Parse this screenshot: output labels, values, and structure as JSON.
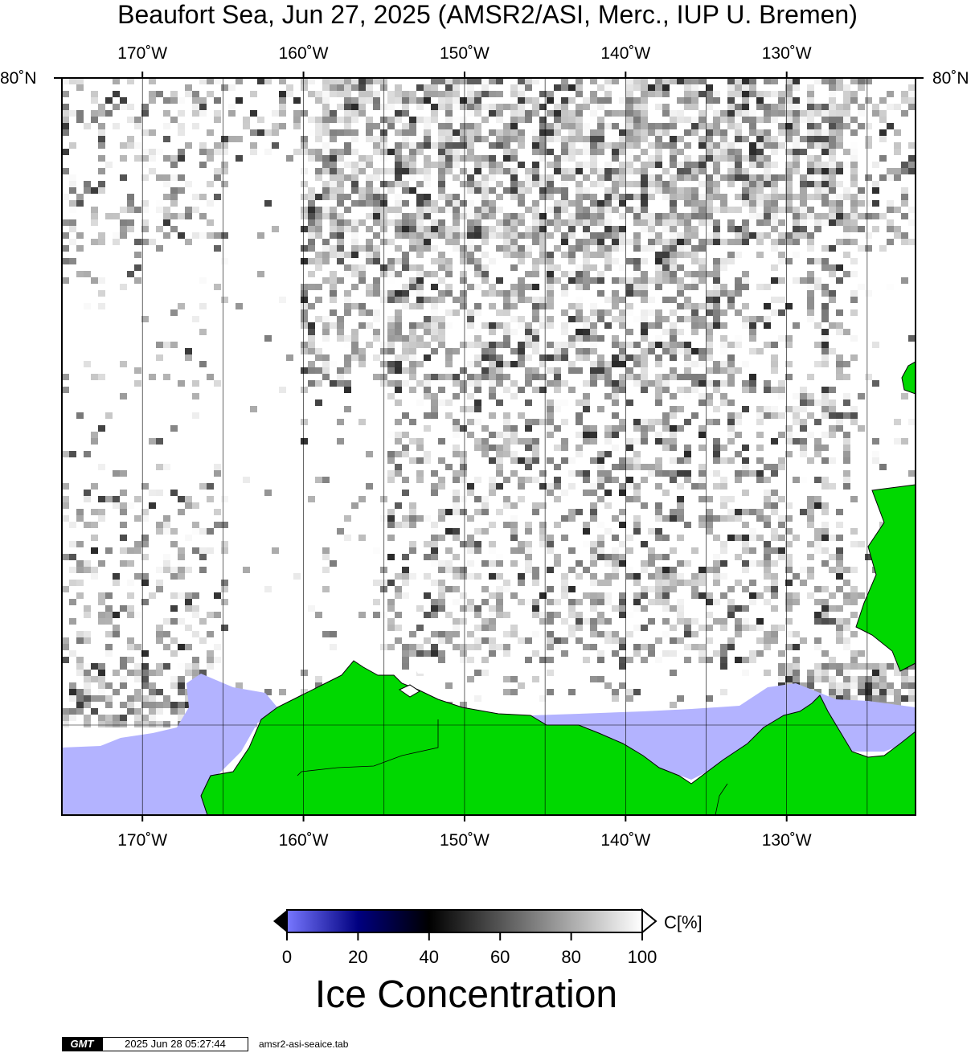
{
  "title": "Beaufort Sea, Jun 27, 2025 (AMSR2/ASI, Merc., IUP U. Bremen)",
  "map": {
    "projection": "Mercator",
    "lon_range": [
      -175,
      -122
    ],
    "lat_top_label": "80˚N",
    "lon_ticks_deg": [
      -170,
      -160,
      -150,
      -140,
      -130
    ],
    "lon_tick_labels": [
      "170˚W",
      "160˚W",
      "150˚W",
      "140˚W",
      "130˚W"
    ],
    "gridline_lons_deg": [
      -170,
      -165,
      -160,
      -155,
      -150,
      -145,
      -140,
      -135,
      -130,
      -125
    ],
    "colors": {
      "land": "#00d800",
      "open_water": "#b3b3ff",
      "frame": "#000000"
    }
  },
  "colorbar": {
    "ticks": [
      0,
      20,
      40,
      60,
      80,
      100
    ],
    "tick_labels": [
      "0",
      "20",
      "40",
      "60",
      "80",
      "100"
    ],
    "unit_label": "C[%]",
    "title": "Ice Concentration",
    "colors": {
      "low": "#7777ff",
      "mid_low": "#000080",
      "mid": "#000000",
      "high": "#ffffff"
    }
  },
  "footer": {
    "logo_text": "GMT",
    "timestamp": "2025 Jun 28 05:27:44",
    "source_file": "amsr2-asi-seaice.tab"
  }
}
